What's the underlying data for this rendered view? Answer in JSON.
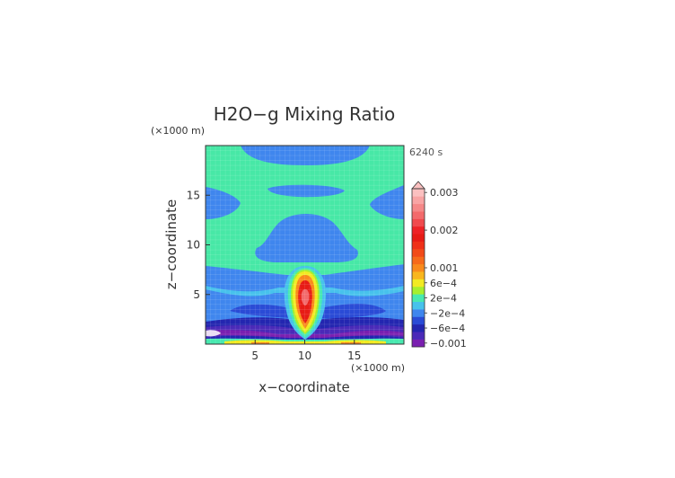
{
  "chart_data": {
    "type": "heatmap",
    "title": "H2O−g Mixing Ratio",
    "xlabel": "x−coordinate",
    "ylabel": "z−coordinate",
    "x_unit": "(×1000 m)",
    "y_unit": "(×1000 m)",
    "time_label": "6240 s",
    "xlim": [
      0,
      20
    ],
    "ylim": [
      0,
      20
    ],
    "x_ticks": [
      5,
      10,
      15
    ],
    "y_ticks": [
      5,
      10,
      15
    ],
    "grid": true,
    "colorbar": {
      "levels": [
        {
          "value": -0.001,
          "color": "#7a1fb0"
        },
        {
          "value": -0.0008,
          "color": "#4a2ab8"
        },
        {
          "value": -0.0006,
          "color": "#2326b0"
        },
        {
          "value": -0.0004,
          "color": "#2a4bd6"
        },
        {
          "value": -0.0002,
          "color": "#3f86ee"
        },
        {
          "value": 0,
          "color": "#47c2ec"
        },
        {
          "value": 0.0002,
          "color": "#48e9b0"
        },
        {
          "value": 0.0004,
          "color": "#a6ef2e"
        },
        {
          "value": 0.0006,
          "color": "#f2ea22"
        },
        {
          "value": 0.0008,
          "color": "#f9b61d"
        },
        {
          "value": 0.001,
          "color": "#f98a1c"
        },
        {
          "value": 0.0012,
          "color": "#f66a1a"
        },
        {
          "value": 0.0014,
          "color": "#f24a18"
        },
        {
          "value": 0.0016,
          "color": "#ef3018"
        },
        {
          "value": 0.0018,
          "color": "#e71b15"
        },
        {
          "value": 0.002,
          "color": "#ee2226"
        },
        {
          "value": 0.0022,
          "color": "#f04a4e"
        },
        {
          "value": 0.0024,
          "color": "#f36a6c"
        },
        {
          "value": 0.0026,
          "color": "#f58888"
        },
        {
          "value": 0.0028,
          "color": "#f8a4a4"
        },
        {
          "value": 0.003,
          "color": "#fbc0c0"
        }
      ],
      "tick_labels": [
        {
          "value": 0.003,
          "label": "0.003"
        },
        {
          "value": 0.002,
          "label": "0.002"
        },
        {
          "value": 0.001,
          "label": "0.001"
        },
        {
          "value": 0.0006,
          "label": "6e−4"
        },
        {
          "value": 0.0002,
          "label": "2e−4"
        },
        {
          "value": -0.0002,
          "label": "−2e−4"
        },
        {
          "value": -0.0006,
          "label": "−6e−4"
        },
        {
          "value": -0.001,
          "label": "−0.001"
        }
      ]
    }
  }
}
